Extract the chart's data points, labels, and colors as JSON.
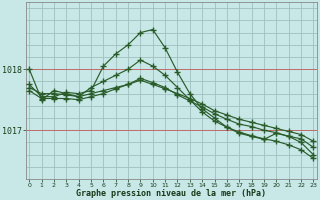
{
  "title": "Graphe pression niveau de la mer (hPa)",
  "background_color": "#c8e8e8",
  "grid_color": "#a0c0c0",
  "line_color": "#2a5c2a",
  "x_ticks": [
    0,
    1,
    2,
    3,
    4,
    5,
    6,
    7,
    8,
    9,
    10,
    11,
    12,
    13,
    14,
    15,
    16,
    17,
    18,
    19,
    20,
    21,
    22,
    23
  ],
  "yticks": [
    1017.0,
    1018.0
  ],
  "ylim": [
    1016.2,
    1019.1
  ],
  "xlim": [
    -0.3,
    23.3
  ],
  "series": [
    [
      1018.0,
      1017.5,
      1017.65,
      1017.6,
      1017.55,
      1017.7,
      1017.8,
      1017.9,
      1018.0,
      1018.15,
      1018.05,
      1017.9,
      1017.7,
      1017.5,
      1017.3,
      1017.15,
      1017.05,
      1016.95,
      1016.9,
      1016.85,
      1016.95,
      1016.9,
      1016.8,
      1016.6
    ],
    [
      1017.7,
      1017.6,
      1017.6,
      1017.58,
      1017.55,
      1017.6,
      1017.65,
      1017.7,
      1017.75,
      1017.82,
      1017.75,
      1017.68,
      1017.6,
      1017.52,
      1017.43,
      1017.32,
      1017.25,
      1017.18,
      1017.13,
      1017.08,
      1017.03,
      1016.98,
      1016.93,
      1016.82
    ],
    [
      1017.75,
      1017.55,
      1017.55,
      1017.62,
      1017.6,
      1017.65,
      1018.05,
      1018.25,
      1018.4,
      1018.6,
      1018.65,
      1018.35,
      1017.95,
      1017.6,
      1017.35,
      1017.2,
      1017.05,
      1016.97,
      1016.91,
      1016.86,
      1016.82,
      1016.76,
      1016.68,
      1016.54
    ],
    [
      1017.65,
      1017.52,
      1017.52,
      1017.52,
      1017.5,
      1017.55,
      1017.6,
      1017.68,
      1017.75,
      1017.85,
      1017.78,
      1017.7,
      1017.58,
      1017.48,
      1017.38,
      1017.27,
      1017.18,
      1017.1,
      1017.06,
      1017.0,
      1016.96,
      1016.9,
      1016.86,
      1016.72
    ]
  ]
}
